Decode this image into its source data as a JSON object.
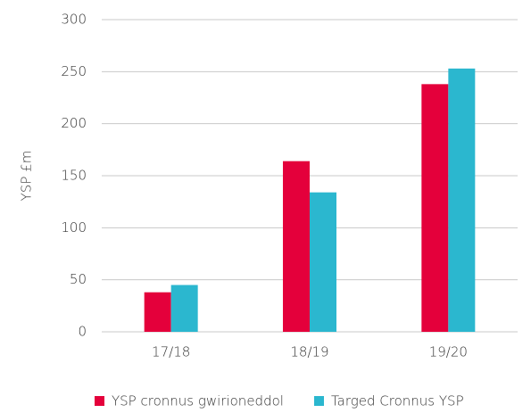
{
  "chart_data": {
    "type": "bar",
    "y_label": "YSP £m",
    "categories": [
      "17/18",
      "18/19",
      "19/20"
    ],
    "series": [
      {
        "name": "YSP cronnus gwirioneddol",
        "color": "#e4003b",
        "values": [
          38,
          164,
          238
        ]
      },
      {
        "name": "Targed Cronnus YSP",
        "color": "#2bb7cf",
        "values": [
          45,
          134,
          253
        ]
      }
    ],
    "ylim": [
      0,
      300
    ],
    "yticks": [
      0,
      50,
      100,
      150,
      200,
      250,
      300
    ],
    "grid": true,
    "legend": "bottom"
  }
}
